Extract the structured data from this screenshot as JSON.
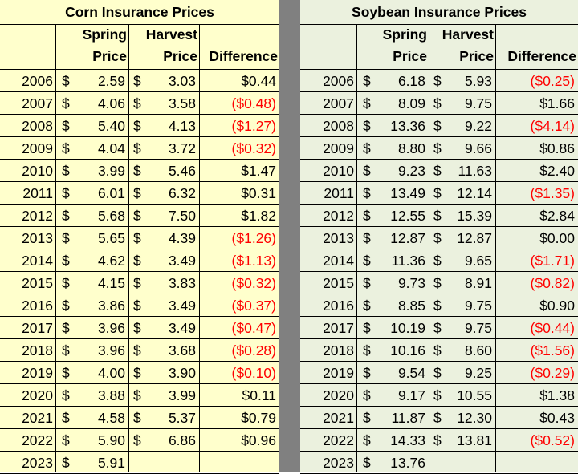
{
  "corn": {
    "title": "Corn Insurance Prices",
    "headers": {
      "spring_l1": "Spring",
      "spring_l2": "Price",
      "harvest_l1": "Harvest",
      "harvest_l2": "Price",
      "difference": "Difference"
    },
    "rows": [
      {
        "year": "2006",
        "spring": "2.59",
        "harvest": "3.03",
        "diff": "$0.44"
      },
      {
        "year": "2007",
        "spring": "4.06",
        "harvest": "3.58",
        "diff": "($0.48)"
      },
      {
        "year": "2008",
        "spring": "5.40",
        "harvest": "4.13",
        "diff": "($1.27)"
      },
      {
        "year": "2009",
        "spring": "4.04",
        "harvest": "3.72",
        "diff": "($0.32)"
      },
      {
        "year": "2010",
        "spring": "3.99",
        "harvest": "5.46",
        "diff": "$1.47"
      },
      {
        "year": "2011",
        "spring": "6.01",
        "harvest": "6.32",
        "diff": "$0.31"
      },
      {
        "year": "2012",
        "spring": "5.68",
        "harvest": "7.50",
        "diff": "$1.82"
      },
      {
        "year": "2013",
        "spring": "5.65",
        "harvest": "4.39",
        "diff": "($1.26)"
      },
      {
        "year": "2014",
        "spring": "4.62",
        "harvest": "3.49",
        "diff": "($1.13)"
      },
      {
        "year": "2015",
        "spring": "4.15",
        "harvest": "3.83",
        "diff": "($0.32)"
      },
      {
        "year": "2016",
        "spring": "3.86",
        "harvest": "3.49",
        "diff": "($0.37)"
      },
      {
        "year": "2017",
        "spring": "3.96",
        "harvest": "3.49",
        "diff": "($0.47)"
      },
      {
        "year": "2018",
        "spring": "3.96",
        "harvest": "3.68",
        "diff": "($0.28)"
      },
      {
        "year": "2019",
        "spring": "4.00",
        "harvest": "3.90",
        "diff": "($0.10)"
      },
      {
        "year": "2020",
        "spring": "3.88",
        "harvest": "3.99",
        "diff": "$0.11"
      },
      {
        "year": "2021",
        "spring": "4.58",
        "harvest": "5.37",
        "diff": "$0.79"
      },
      {
        "year": "2022",
        "spring": "5.90",
        "harvest": "6.86",
        "diff": "$0.96"
      },
      {
        "year": "2023",
        "spring": "5.91",
        "harvest": "",
        "diff": ""
      }
    ]
  },
  "soybean": {
    "title": "Soybean Insurance Prices",
    "headers": {
      "spring_l1": "Spring",
      "spring_l2": "Price",
      "harvest_l1": "Harvest",
      "harvest_l2": "Price",
      "difference": "Difference"
    },
    "rows": [
      {
        "year": "2006",
        "spring": "6.18",
        "harvest": "5.93",
        "diff": "($0.25)"
      },
      {
        "year": "2007",
        "spring": "8.09",
        "harvest": "9.75",
        "diff": "$1.66"
      },
      {
        "year": "2008",
        "spring": "13.36",
        "harvest": "9.22",
        "diff": "($4.14)"
      },
      {
        "year": "2009",
        "spring": "8.80",
        "harvest": "9.66",
        "diff": "$0.86"
      },
      {
        "year": "2010",
        "spring": "9.23",
        "harvest": "11.63",
        "diff": "$2.40"
      },
      {
        "year": "2011",
        "spring": "13.49",
        "harvest": "12.14",
        "diff": "($1.35)"
      },
      {
        "year": "2012",
        "spring": "12.55",
        "harvest": "15.39",
        "diff": "$2.84"
      },
      {
        "year": "2013",
        "spring": "12.87",
        "harvest": "12.87",
        "diff": "$0.00"
      },
      {
        "year": "2014",
        "spring": "11.36",
        "harvest": "9.65",
        "diff": "($1.71)"
      },
      {
        "year": "2015",
        "spring": "9.73",
        "harvest": "8.91",
        "diff": "($0.82)"
      },
      {
        "year": "2016",
        "spring": "8.85",
        "harvest": "9.75",
        "diff": "$0.90"
      },
      {
        "year": "2017",
        "spring": "10.19",
        "harvest": "9.75",
        "diff": "($0.44)"
      },
      {
        "year": "2018",
        "spring": "10.16",
        "harvest": "8.60",
        "diff": "($1.56)"
      },
      {
        "year": "2019",
        "spring": "9.54",
        "harvest": "9.25",
        "diff": "($0.29)"
      },
      {
        "year": "2020",
        "spring": "9.17",
        "harvest": "10.55",
        "diff": "$1.38"
      },
      {
        "year": "2021",
        "spring": "11.87",
        "harvest": "12.30",
        "diff": "$0.43"
      },
      {
        "year": "2022",
        "spring": "14.33",
        "harvest": "13.81",
        "diff": "($0.52)"
      },
      {
        "year": "2023",
        "spring": "13.76",
        "harvest": "",
        "diff": ""
      }
    ]
  },
  "currency_symbol": "$",
  "colors": {
    "corn_bg": "#ffffcc",
    "soy_bg": "#ebf1de",
    "divider": "#808080",
    "negative": "#ff0000"
  }
}
